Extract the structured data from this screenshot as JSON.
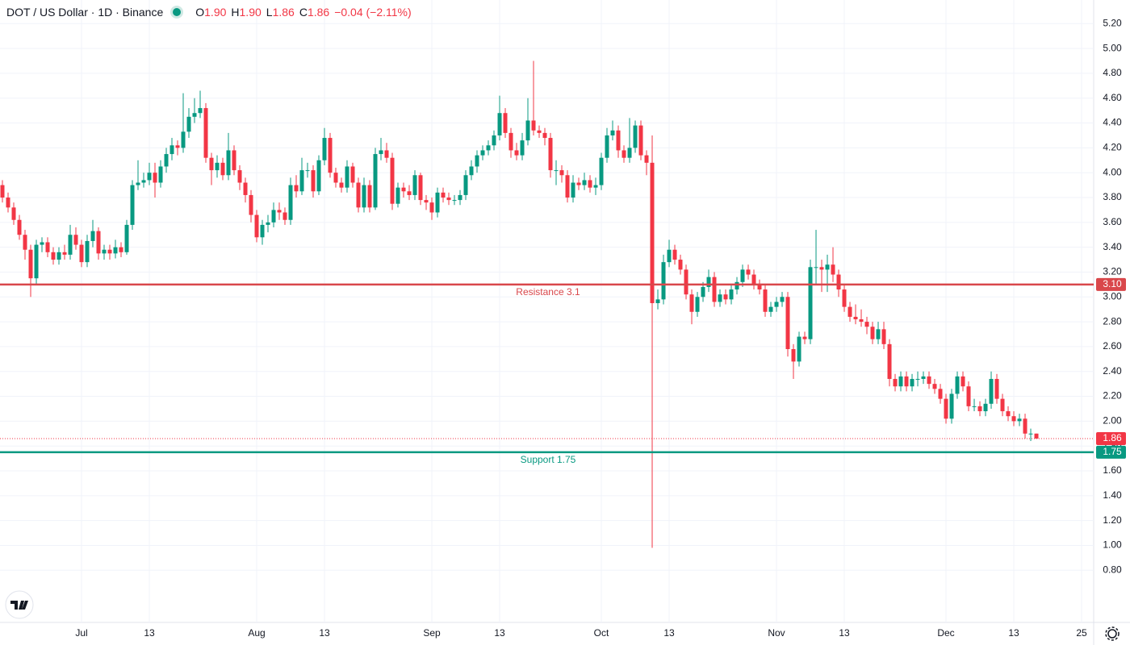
{
  "chart_data": {
    "type": "candlestick",
    "title": "DOT / US Dollar · 1D · Binance",
    "header": {
      "o_key": "O",
      "o": {
        "value": 1.9,
        "label": "1.90"
      },
      "h_key": "H",
      "h": {
        "value": 1.9,
        "label": "1.90"
      },
      "l_key": "L",
      "l": {
        "value": 1.86,
        "label": "1.86"
      },
      "c_key": "C",
      "c": {
        "value": 1.86,
        "label": "1.86"
      },
      "change": "−0.04 (−2.11%)"
    },
    "up_color": "#089981",
    "down_color": "#f23645",
    "ylim": [
      0.38,
      5.39
    ],
    "yticks": [
      {
        "value": 0.8,
        "label": "0.80"
      },
      {
        "value": 1.0,
        "label": "1.00"
      },
      {
        "value": 1.2,
        "label": "1.20"
      },
      {
        "value": 1.4,
        "label": "1.40"
      },
      {
        "value": 1.6,
        "label": "1.60"
      },
      {
        "value": 1.8,
        "label": "1.80"
      },
      {
        "value": 2.0,
        "label": "2.00"
      },
      {
        "value": 2.2,
        "label": "2.20"
      },
      {
        "value": 2.4,
        "label": "2.40"
      },
      {
        "value": 2.6,
        "label": "2.60"
      },
      {
        "value": 2.8,
        "label": "2.80"
      },
      {
        "value": 3.0,
        "label": "3.00"
      },
      {
        "value": 3.2,
        "label": "3.20"
      },
      {
        "value": 3.4,
        "label": "3.40"
      },
      {
        "value": 3.6,
        "label": "3.60"
      },
      {
        "value": 3.8,
        "label": "3.80"
      },
      {
        "value": 4.0,
        "label": "4.00"
      },
      {
        "value": 4.2,
        "label": "4.20"
      },
      {
        "value": 4.4,
        "label": "4.40"
      },
      {
        "value": 4.6,
        "label": "4.60"
      },
      {
        "value": 4.8,
        "label": "4.80"
      },
      {
        "value": 5.0,
        "label": "5.00"
      },
      {
        "value": 5.2,
        "label": "5.20"
      }
    ],
    "xlim": [
      -0.43,
      193.14
    ],
    "xticks": [
      {
        "value": 14,
        "label": "Jul"
      },
      {
        "value": 26,
        "label": "13"
      },
      {
        "value": 45,
        "label": "Aug"
      },
      {
        "value": 57,
        "label": "13"
      },
      {
        "value": 76,
        "label": "Sep"
      },
      {
        "value": 88,
        "label": "13"
      },
      {
        "value": 106,
        "label": "Oct"
      },
      {
        "value": 118,
        "label": "13"
      },
      {
        "value": 137,
        "label": "Nov"
      },
      {
        "value": 149,
        "label": "13"
      },
      {
        "value": 167,
        "label": "Dec"
      },
      {
        "value": 179,
        "label": "13"
      },
      {
        "value": 191,
        "label": "25"
      }
    ],
    "grid": true,
    "hlines": [
      {
        "name": "Resistance 3.1",
        "value": 3.1,
        "label": "3.10",
        "color": "#d9474b"
      },
      {
        "name": "Support 1.75",
        "value": 1.75,
        "label": "1.75",
        "color": "#089981"
      }
    ],
    "last_price": {
      "value": 1.86,
      "label": "1.86",
      "color": "#f23645"
    },
    "ohlc": [
      [
        3.9,
        3.94,
        3.76,
        3.8
      ],
      [
        3.8,
        3.84,
        3.68,
        3.72
      ],
      [
        3.72,
        3.76,
        3.58,
        3.62
      ],
      [
        3.62,
        3.66,
        3.46,
        3.5
      ],
      [
        3.5,
        3.54,
        3.3,
        3.38
      ],
      [
        3.38,
        3.42,
        3.0,
        3.15
      ],
      [
        3.15,
        3.46,
        3.1,
        3.42
      ],
      [
        3.42,
        3.48,
        3.36,
        3.44
      ],
      [
        3.44,
        3.48,
        3.32,
        3.36
      ],
      [
        3.36,
        3.4,
        3.26,
        3.3
      ],
      [
        3.3,
        3.4,
        3.26,
        3.36
      ],
      [
        3.36,
        3.42,
        3.3,
        3.34
      ],
      [
        3.34,
        3.58,
        3.3,
        3.5
      ],
      [
        3.5,
        3.56,
        3.38,
        3.42
      ],
      [
        3.42,
        3.46,
        3.24,
        3.28
      ],
      [
        3.28,
        3.5,
        3.24,
        3.45
      ],
      [
        3.45,
        3.62,
        3.4,
        3.53
      ],
      [
        3.53,
        3.56,
        3.3,
        3.35
      ],
      [
        3.35,
        3.42,
        3.3,
        3.38
      ],
      [
        3.38,
        3.42,
        3.3,
        3.35
      ],
      [
        3.35,
        3.46,
        3.31,
        3.4
      ],
      [
        3.4,
        3.44,
        3.32,
        3.36
      ],
      [
        3.36,
        3.62,
        3.34,
        3.58
      ],
      [
        3.58,
        3.94,
        3.54,
        3.9
      ],
      [
        3.9,
        4.1,
        3.86,
        3.92
      ],
      [
        3.92,
        4.0,
        3.88,
        3.94
      ],
      [
        3.94,
        4.08,
        3.9,
        4.0
      ],
      [
        4.0,
        4.08,
        3.8,
        3.92
      ],
      [
        3.92,
        4.1,
        3.88,
        4.05
      ],
      [
        4.05,
        4.2,
        4.0,
        4.15
      ],
      [
        4.15,
        4.28,
        4.1,
        4.22
      ],
      [
        4.22,
        4.26,
        4.14,
        4.2
      ],
      [
        4.2,
        4.64,
        4.16,
        4.33
      ],
      [
        4.33,
        4.52,
        4.28,
        4.45
      ],
      [
        4.45,
        4.6,
        4.4,
        4.48
      ],
      [
        4.48,
        4.66,
        4.44,
        4.52
      ],
      [
        4.52,
        4.56,
        4.08,
        4.12
      ],
      [
        4.12,
        4.16,
        3.9,
        4.02
      ],
      [
        4.02,
        4.14,
        3.96,
        4.08
      ],
      [
        4.08,
        4.12,
        3.94,
        3.98
      ],
      [
        3.98,
        4.32,
        3.94,
        4.18
      ],
      [
        4.18,
        4.22,
        3.98,
        4.02
      ],
      [
        4.02,
        4.06,
        3.86,
        3.92
      ],
      [
        3.92,
        3.96,
        3.76,
        3.82
      ],
      [
        3.82,
        3.86,
        3.6,
        3.66
      ],
      [
        3.66,
        3.7,
        3.44,
        3.48
      ],
      [
        3.48,
        3.62,
        3.42,
        3.58
      ],
      [
        3.58,
        3.66,
        3.52,
        3.6
      ],
      [
        3.6,
        3.76,
        3.56,
        3.7
      ],
      [
        3.7,
        3.76,
        3.62,
        3.68
      ],
      [
        3.68,
        3.72,
        3.58,
        3.62
      ],
      [
        3.62,
        3.96,
        3.58,
        3.9
      ],
      [
        3.9,
        3.98,
        3.8,
        3.85
      ],
      [
        3.85,
        4.12,
        3.82,
        4.02
      ],
      [
        4.02,
        4.08,
        3.96,
        4.02
      ],
      [
        4.02,
        4.06,
        3.8,
        3.85
      ],
      [
        3.85,
        4.14,
        3.82,
        4.1
      ],
      [
        4.1,
        4.36,
        4.06,
        4.28
      ],
      [
        4.28,
        4.32,
        3.96,
        4.0
      ],
      [
        4.0,
        4.04,
        3.88,
        3.92
      ],
      [
        3.92,
        3.96,
        3.84,
        3.88
      ],
      [
        3.88,
        4.1,
        3.84,
        4.05
      ],
      [
        4.05,
        4.08,
        3.88,
        3.92
      ],
      [
        3.92,
        3.96,
        3.68,
        3.72
      ],
      [
        3.72,
        3.96,
        3.68,
        3.9
      ],
      [
        3.9,
        3.94,
        3.68,
        3.72
      ],
      [
        3.72,
        4.2,
        3.7,
        4.15
      ],
      [
        4.15,
        4.28,
        4.1,
        4.18
      ],
      [
        4.18,
        4.24,
        4.08,
        4.12
      ],
      [
        4.12,
        4.16,
        3.7,
        3.75
      ],
      [
        3.75,
        3.92,
        3.72,
        3.88
      ],
      [
        3.88,
        3.92,
        3.8,
        3.85
      ],
      [
        3.85,
        3.9,
        3.78,
        3.82
      ],
      [
        3.82,
        4.02,
        3.78,
        3.98
      ],
      [
        3.98,
        4.0,
        3.74,
        3.78
      ],
      [
        3.78,
        3.82,
        3.7,
        3.76
      ],
      [
        3.76,
        3.8,
        3.62,
        3.68
      ],
      [
        3.68,
        3.88,
        3.64,
        3.84
      ],
      [
        3.84,
        3.88,
        3.76,
        3.8
      ],
      [
        3.8,
        3.84,
        3.74,
        3.78
      ],
      [
        3.78,
        3.82,
        3.74,
        3.78
      ],
      [
        3.78,
        3.86,
        3.74,
        3.82
      ],
      [
        3.82,
        4.02,
        3.78,
        3.98
      ],
      [
        3.98,
        4.1,
        3.94,
        4.05
      ],
      [
        4.05,
        4.18,
        4.0,
        4.14
      ],
      [
        4.14,
        4.22,
        4.1,
        4.18
      ],
      [
        4.18,
        4.26,
        4.14,
        4.22
      ],
      [
        4.22,
        4.34,
        4.18,
        4.3
      ],
      [
        4.3,
        4.62,
        4.26,
        4.48
      ],
      [
        4.48,
        4.52,
        4.28,
        4.32
      ],
      [
        4.32,
        4.36,
        4.12,
        4.18
      ],
      [
        4.18,
        4.24,
        4.1,
        4.14
      ],
      [
        4.14,
        4.32,
        4.1,
        4.26
      ],
      [
        4.26,
        4.6,
        4.22,
        4.42
      ],
      [
        4.42,
        4.9,
        4.3,
        4.34
      ],
      [
        4.34,
        4.38,
        4.28,
        4.32
      ],
      [
        4.32,
        4.36,
        4.22,
        4.28
      ],
      [
        4.28,
        4.32,
        3.96,
        4.02
      ],
      [
        4.02,
        4.1,
        3.9,
        4.02
      ],
      [
        4.02,
        4.06,
        3.92,
        3.98
      ],
      [
        3.98,
        4.02,
        3.76,
        3.8
      ],
      [
        3.8,
        3.98,
        3.76,
        3.92
      ],
      [
        3.92,
        3.96,
        3.86,
        3.9
      ],
      [
        3.9,
        4.0,
        3.86,
        3.94
      ],
      [
        3.94,
        3.98,
        3.84,
        3.88
      ],
      [
        3.88,
        3.96,
        3.82,
        3.9
      ],
      [
        3.9,
        4.16,
        3.86,
        4.12
      ],
      [
        4.12,
        4.36,
        4.08,
        4.3
      ],
      [
        4.3,
        4.42,
        4.26,
        4.34
      ],
      [
        4.34,
        4.38,
        4.12,
        4.18
      ],
      [
        4.18,
        4.22,
        4.08,
        4.12
      ],
      [
        4.12,
        4.44,
        4.08,
        4.2
      ],
      [
        4.2,
        4.42,
        4.16,
        4.38
      ],
      [
        4.38,
        4.42,
        4.1,
        4.14
      ],
      [
        4.14,
        4.18,
        3.98,
        4.08
      ],
      [
        4.08,
        4.3,
        0.98,
        2.95
      ],
      [
        2.95,
        3.06,
        2.9,
        2.98
      ],
      [
        2.98,
        3.34,
        2.94,
        3.28
      ],
      [
        3.28,
        3.46,
        3.24,
        3.38
      ],
      [
        3.38,
        3.42,
        3.26,
        3.3
      ],
      [
        3.3,
        3.34,
        3.18,
        3.22
      ],
      [
        3.22,
        3.26,
        2.98,
        3.02
      ],
      [
        3.02,
        3.06,
        2.78,
        2.88
      ],
      [
        2.88,
        3.04,
        2.84,
        3.0
      ],
      [
        3.0,
        3.12,
        2.96,
        3.08
      ],
      [
        3.08,
        3.22,
        3.04,
        3.16
      ],
      [
        3.16,
        3.2,
        2.92,
        2.96
      ],
      [
        2.96,
        3.06,
        2.92,
        3.02
      ],
      [
        3.02,
        3.06,
        2.94,
        2.98
      ],
      [
        2.98,
        3.1,
        2.94,
        3.06
      ],
      [
        3.06,
        3.16,
        3.02,
        3.12
      ],
      [
        3.12,
        3.26,
        3.08,
        3.22
      ],
      [
        3.22,
        3.26,
        3.14,
        3.18
      ],
      [
        3.18,
        3.22,
        3.06,
        3.1
      ],
      [
        3.1,
        3.14,
        3.02,
        3.06
      ],
      [
        3.06,
        3.1,
        2.84,
        2.88
      ],
      [
        2.88,
        2.96,
        2.84,
        2.92
      ],
      [
        2.92,
        3.0,
        2.88,
        2.96
      ],
      [
        2.96,
        3.04,
        2.92,
        3.0
      ],
      [
        3.0,
        3.04,
        2.52,
        2.58
      ],
      [
        2.58,
        2.62,
        2.34,
        2.48
      ],
      [
        2.48,
        2.72,
        2.44,
        2.68
      ],
      [
        2.68,
        2.72,
        2.62,
        2.66
      ],
      [
        2.66,
        3.3,
        2.62,
        3.24
      ],
      [
        3.24,
        3.54,
        3.1,
        3.24
      ],
      [
        3.24,
        3.3,
        3.04,
        3.22
      ],
      [
        3.22,
        3.34,
        3.04,
        3.26
      ],
      [
        3.26,
        3.4,
        3.12,
        3.18
      ],
      [
        3.18,
        3.22,
        3.0,
        3.06
      ],
      [
        3.06,
        3.1,
        2.88,
        2.92
      ],
      [
        2.92,
        2.96,
        2.8,
        2.84
      ],
      [
        2.84,
        2.94,
        2.78,
        2.82
      ],
      [
        2.82,
        2.9,
        2.76,
        2.8
      ],
      [
        2.8,
        2.84,
        2.7,
        2.76
      ],
      [
        2.76,
        2.8,
        2.62,
        2.66
      ],
      [
        2.66,
        2.8,
        2.62,
        2.74
      ],
      [
        2.74,
        2.8,
        2.58,
        2.62
      ],
      [
        2.62,
        2.66,
        2.28,
        2.34
      ],
      [
        2.34,
        2.38,
        2.24,
        2.28
      ],
      [
        2.28,
        2.4,
        2.24,
        2.36
      ],
      [
        2.36,
        2.4,
        2.24,
        2.28
      ],
      [
        2.28,
        2.38,
        2.24,
        2.34
      ],
      [
        2.34,
        2.4,
        2.28,
        2.34
      ],
      [
        2.34,
        2.4,
        2.3,
        2.36
      ],
      [
        2.36,
        2.4,
        2.26,
        2.3
      ],
      [
        2.3,
        2.34,
        2.22,
        2.26
      ],
      [
        2.26,
        2.3,
        2.14,
        2.18
      ],
      [
        2.18,
        2.22,
        1.98,
        2.02
      ],
      [
        2.02,
        2.26,
        1.98,
        2.22
      ],
      [
        2.22,
        2.4,
        2.18,
        2.36
      ],
      [
        2.36,
        2.4,
        2.24,
        2.28
      ],
      [
        2.28,
        2.32,
        2.08,
        2.12
      ],
      [
        2.12,
        2.18,
        2.08,
        2.12
      ],
      [
        2.12,
        2.16,
        2.04,
        2.08
      ],
      [
        2.08,
        2.18,
        2.04,
        2.14
      ],
      [
        2.14,
        2.4,
        2.1,
        2.34
      ],
      [
        2.34,
        2.38,
        2.14,
        2.18
      ],
      [
        2.18,
        2.22,
        2.04,
        2.08
      ],
      [
        2.08,
        2.12,
        2.0,
        2.04
      ],
      [
        2.04,
        2.08,
        1.96,
        2.0
      ],
      [
        2.0,
        2.06,
        1.96,
        2.02
      ],
      [
        2.02,
        2.06,
        1.86,
        1.9
      ],
      [
        1.9,
        1.94,
        1.84,
        1.9
      ],
      [
        1.9,
        1.9,
        1.86,
        1.86
      ]
    ]
  }
}
